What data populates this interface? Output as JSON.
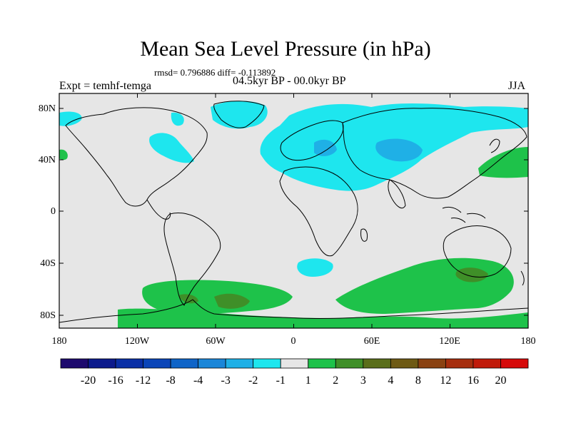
{
  "title": "Mean Sea Level Pressure (in hPa)",
  "stats": "rmsd= 0.796886 diff= -0.113892",
  "experiment": "Expt = temhf-temga",
  "period": "04.5kyr BP - 00.0kyr BP",
  "season": "JJA",
  "axes": {
    "lat_labels": [
      "80N",
      "40N",
      "0",
      "40S",
      "80S"
    ],
    "lon_labels": [
      "180",
      "120W",
      "60W",
      "0",
      "60E",
      "120E",
      "180"
    ]
  },
  "colorbar": {
    "colors": [
      "#1e0a6e",
      "#0c1a8c",
      "#0a2fa6",
      "#0b45b8",
      "#0e64c8",
      "#1a86d8",
      "#1fb0e6",
      "#1ee6ee",
      "#e6e6e6",
      "#1ec24a",
      "#3f8f28",
      "#5a6e1a",
      "#6e5a14",
      "#8a4212",
      "#a62e0e",
      "#c01a0a",
      "#d60a0a"
    ],
    "labels": [
      "-20",
      "-16",
      "-12",
      "-8",
      "-4",
      "-3",
      "-2",
      "-1",
      "1",
      "2",
      "3",
      "4",
      "8",
      "12",
      "16",
      "20"
    ]
  },
  "field_colors": {
    "background": "#e6e6e6",
    "neg1": "#1ee6ee",
    "neg2": "#1fb0e6",
    "pos2": "#1ec24a",
    "pos3": "#3f8f28",
    "pos4": "#5a6e1a"
  }
}
